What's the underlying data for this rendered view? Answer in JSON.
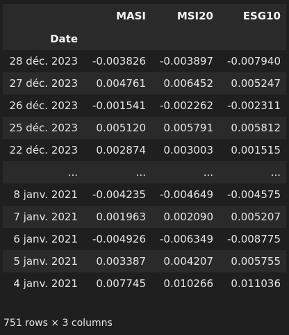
{
  "table": {
    "columns": [
      "MASI",
      "MSI20",
      "ESG10"
    ],
    "index_name": "Date",
    "rows": [
      {
        "date": "28 déc. 2023",
        "MASI": "-0.003826",
        "MSI20": "-0.003897",
        "ESG10": "-0.007940"
      },
      {
        "date": "27 déc. 2023",
        "MASI": "0.004761",
        "MSI20": "0.006452",
        "ESG10": "0.005247"
      },
      {
        "date": "26 déc. 2023",
        "MASI": "-0.001541",
        "MSI20": "-0.002262",
        "ESG10": "-0.002311"
      },
      {
        "date": "25 déc. 2023",
        "MASI": "0.005120",
        "MSI20": "0.005791",
        "ESG10": "0.005812"
      },
      {
        "date": "22 déc. 2023",
        "MASI": "0.002874",
        "MSI20": "0.003003",
        "ESG10": "0.001515"
      },
      {
        "date": "...",
        "MASI": "...",
        "MSI20": "...",
        "ESG10": "..."
      },
      {
        "date": "8 janv. 2021",
        "MASI": "-0.004235",
        "MSI20": "-0.004649",
        "ESG10": "-0.004575"
      },
      {
        "date": "7 janv. 2021",
        "MASI": "0.001963",
        "MSI20": "0.002090",
        "ESG10": "0.005207"
      },
      {
        "date": "6 janv. 2021",
        "MASI": "-0.004926",
        "MSI20": "-0.006349",
        "ESG10": "-0.008775"
      },
      {
        "date": "5 janv. 2021",
        "MASI": "0.003387",
        "MSI20": "0.004207",
        "ESG10": "0.005755"
      },
      {
        "date": "4 janv. 2021",
        "MASI": "0.007745",
        "MSI20": "0.010266",
        "ESG10": "0.011036"
      }
    ]
  },
  "footer": "751 rows × 3 columns",
  "colors": {
    "background": "#1f1f1f",
    "stripe": "#2a2a2a",
    "text": "#e6e6e6"
  }
}
